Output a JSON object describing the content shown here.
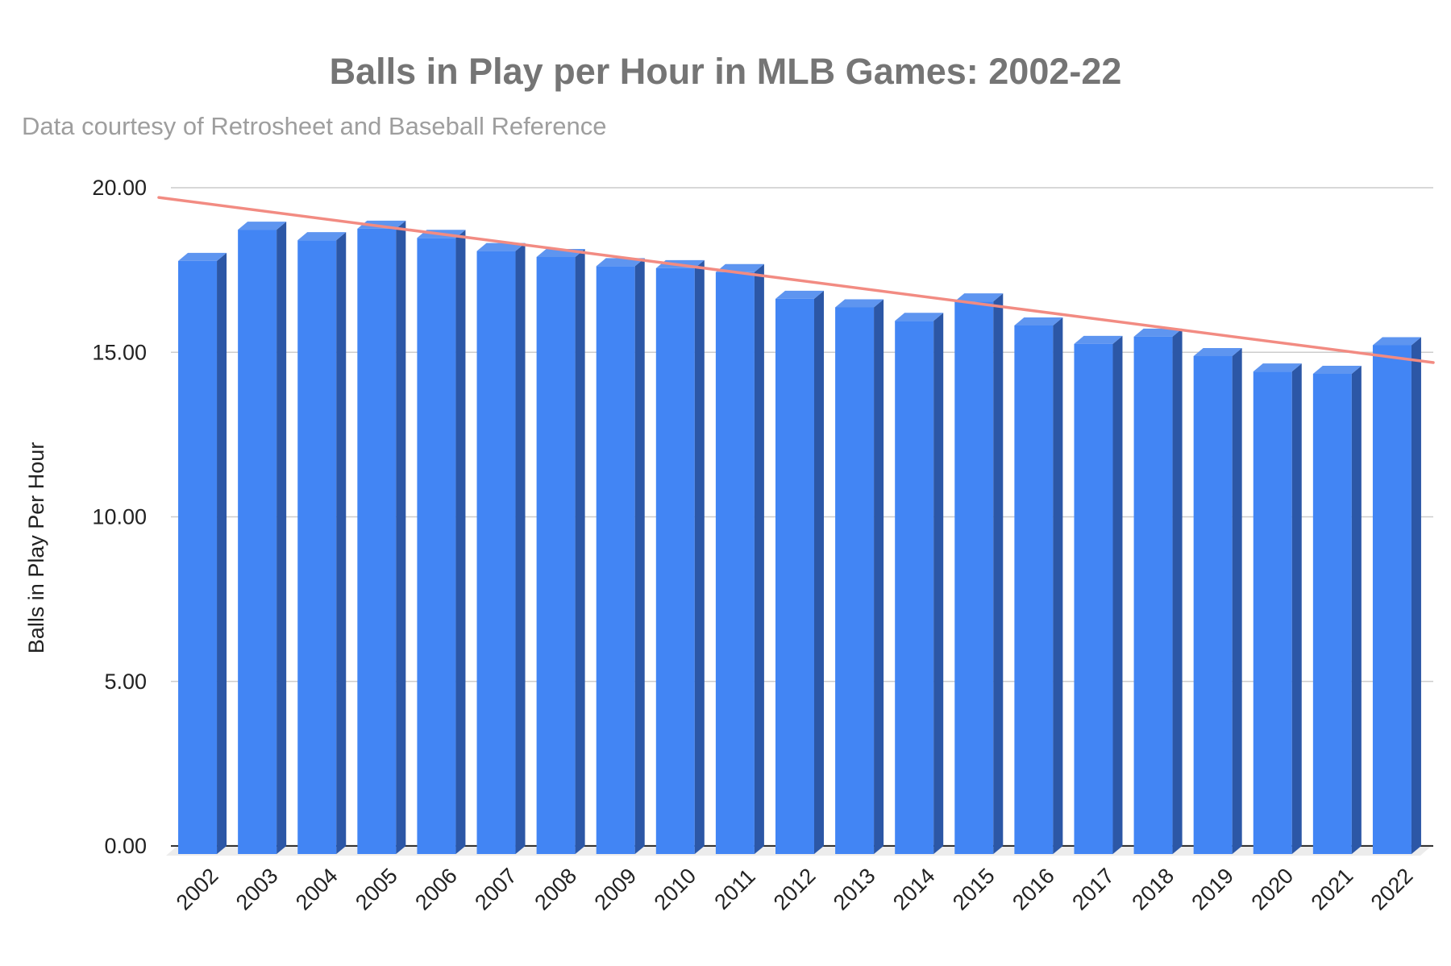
{
  "chart_data": {
    "type": "bar",
    "title": "Balls in Play per Hour in MLB Games: 2002-22",
    "subtitle": "Data courtesy of Retrosheet and Baseball Reference",
    "xlabel": "",
    "ylabel": "Balls in Play Per Hour",
    "categories": [
      "2002",
      "2003",
      "2004",
      "2005",
      "2006",
      "2007",
      "2008",
      "2009",
      "2010",
      "2011",
      "2012",
      "2013",
      "2014",
      "2015",
      "2016",
      "2017",
      "2018",
      "2019",
      "2020",
      "2021",
      "2022"
    ],
    "values": [
      18.02,
      18.97,
      18.65,
      19.0,
      18.72,
      18.32,
      18.14,
      17.86,
      17.8,
      17.68,
      16.87,
      16.61,
      16.2,
      16.79,
      16.06,
      15.5,
      15.72,
      15.13,
      14.66,
      14.59,
      15.46
    ],
    "ylim": [
      0,
      20
    ],
    "yticks": [
      "0.00",
      "5.00",
      "10.00",
      "15.00",
      "20.00"
    ],
    "trendline": {
      "start": 19.55,
      "end": 14.85,
      "color": "#f28b82"
    },
    "bar_color": "#4285f4",
    "bar_side_color": "#2c57a6",
    "bar_top_color": "#5e95f0",
    "grid": true,
    "legend": "none"
  }
}
